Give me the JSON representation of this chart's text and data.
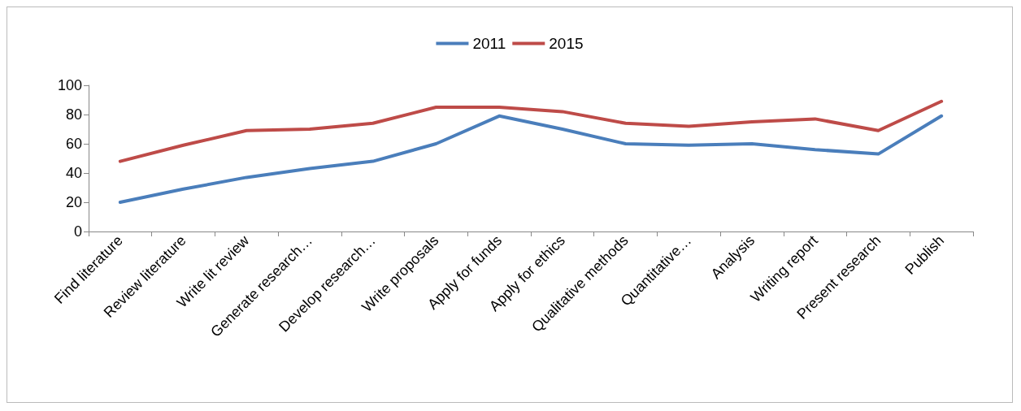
{
  "chart_data": {
    "type": "line",
    "categories": [
      "Find literature",
      "Review literature",
      "Write lit review",
      "Generate research…",
      "Develop research…",
      "Write proposals",
      "Apply for funds",
      "Apply for ethics",
      "Qualitative methods",
      "Quantitative…",
      "Analysis",
      "Writing report",
      "Present research",
      "Publish"
    ],
    "series": [
      {
        "name": "2011",
        "color": "#4a7ebb",
        "values": [
          20,
          29,
          37,
          43,
          48,
          60,
          79,
          70,
          60,
          59,
          60,
          56,
          53,
          79
        ]
      },
      {
        "name": "2015",
        "color": "#be4b48",
        "values": [
          48,
          59,
          69,
          70,
          74,
          85,
          85,
          82,
          74,
          72,
          75,
          77,
          69,
          89
        ]
      }
    ],
    "ylim": [
      0,
      100
    ],
    "yticks": [
      0,
      20,
      40,
      60,
      80,
      100
    ],
    "grid": false,
    "legend": "top",
    "marker": "none",
    "line_style": "solid"
  }
}
